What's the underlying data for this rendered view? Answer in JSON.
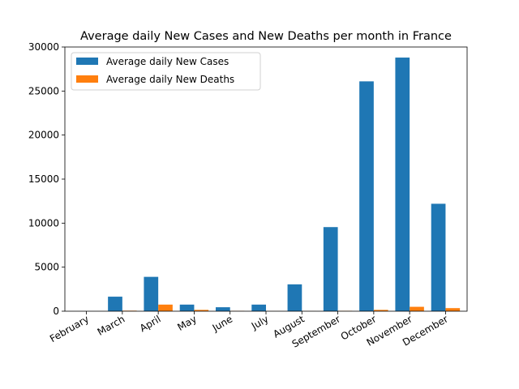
{
  "chart_data": {
    "type": "bar",
    "title": "Average daily New Cases and New Deaths per month in France",
    "xlabel": "",
    "ylabel": "",
    "ylim": [
      0,
      30000
    ],
    "yticks": [
      0,
      5000,
      10000,
      15000,
      20000,
      25000,
      30000
    ],
    "grid": false,
    "legend_position": "top-left",
    "categories": [
      "February",
      "March",
      "April",
      "May",
      "June",
      "July",
      "August",
      "September",
      "October",
      "November",
      "December"
    ],
    "series": [
      {
        "name": "Average daily New Cases",
        "color": "#1f77b4",
        "values": [
          0,
          1650,
          3900,
          750,
          450,
          750,
          3050,
          9550,
          26100,
          28800,
          12200
        ]
      },
      {
        "name": "Average daily New Deaths",
        "color": "#ff7f0e",
        "values": [
          0,
          60,
          750,
          150,
          30,
          10,
          10,
          40,
          150,
          500,
          350
        ]
      }
    ]
  }
}
